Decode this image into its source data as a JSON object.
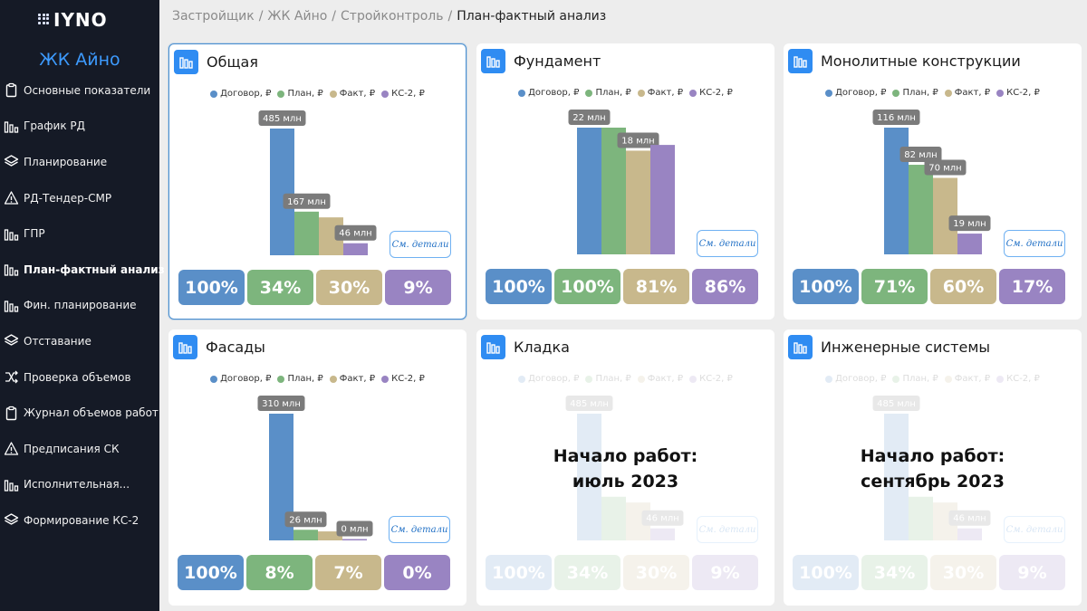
{
  "app": {
    "logo_text": "IYNO",
    "project": "ЖК Айно"
  },
  "sidebar": {
    "items": [
      {
        "label": "Основные показатели",
        "icon": "clipboard-icon",
        "active": false
      },
      {
        "label": "График РД",
        "icon": "bar-chart-icon",
        "active": false
      },
      {
        "label": "Планирование",
        "icon": "layers-icon",
        "active": false
      },
      {
        "label": "РД-Тендер-СМР",
        "icon": "warning-icon",
        "active": false
      },
      {
        "label": "ГПР",
        "icon": "bar-chart-icon",
        "active": false
      },
      {
        "label": "План-фактный анализ",
        "icon": "bar-chart-icon",
        "active": true
      },
      {
        "label": "Фин. планирование",
        "icon": "bar-chart-icon",
        "active": false
      },
      {
        "label": "Отставание",
        "icon": "layers-icon",
        "active": false
      },
      {
        "label": "Проверка объемов",
        "icon": "shuffle-icon",
        "active": false
      },
      {
        "label": "Журнал объемов работ",
        "icon": "clipboard-icon",
        "active": false
      },
      {
        "label": "Предписания СК",
        "icon": "warning-icon",
        "active": false
      },
      {
        "label": "Исполнительная...",
        "icon": "bar-chart-icon",
        "active": false
      },
      {
        "label": "Формирование КС-2",
        "icon": "layers-icon",
        "active": false
      }
    ]
  },
  "breadcrumb": {
    "items": [
      "Застройщик",
      "ЖК Айно",
      "Стройконтроль"
    ],
    "separator": "/",
    "current": "План-фактный анализ"
  },
  "legend": [
    "Договор, ₽",
    "План, ₽",
    "Факт, ₽",
    "КС-2, ₽"
  ],
  "colors": {
    "contract": "#5a8fc8",
    "plan": "#7db57d",
    "fact": "#c8b88c",
    "ks2": "#9984c2",
    "accent": "#2f8cf2",
    "sidebar": "#151a26",
    "project": "#3d9bff"
  },
  "details_label": "См. детали",
  "cards": [
    {
      "title": "Общая",
      "selected": true,
      "faded": false,
      "note": [],
      "chart_data": {
        "type": "bar",
        "categories": [
          "Договор, ₽",
          "План, ₽",
          "Факт, ₽",
          "КС-2, ₽"
        ],
        "values": [
          485,
          167,
          145,
          46
        ],
        "unit": "млн",
        "labels": [
          "485 млн",
          "167 млн",
          "",
          "46 млн"
        ]
      },
      "percents": [
        "100%",
        "34%",
        "30%",
        "9%"
      ]
    },
    {
      "title": "Фундамент",
      "selected": false,
      "faded": false,
      "note": [],
      "chart_data": {
        "type": "bar",
        "categories": [
          "Договор, ₽",
          "План, ₽",
          "Факт, ₽",
          "КС-2, ₽"
        ],
        "values": [
          22,
          22,
          18,
          19
        ],
        "unit": "млн",
        "labels": [
          "22 млн",
          "",
          "18 млн",
          ""
        ]
      },
      "percents": [
        "100%",
        "100%",
        "81%",
        "86%"
      ]
    },
    {
      "title": "Монолитные конструкции",
      "selected": false,
      "faded": false,
      "note": [],
      "chart_data": {
        "type": "bar",
        "categories": [
          "Договор, ₽",
          "План, ₽",
          "Факт, ₽",
          "КС-2, ₽"
        ],
        "values": [
          116,
          82,
          70,
          19
        ],
        "unit": "млн",
        "labels": [
          "116 млн",
          "82 млн",
          "70 млн",
          "19 млн"
        ]
      },
      "percents": [
        "100%",
        "71%",
        "60%",
        "17%"
      ]
    },
    {
      "title": "Фасады",
      "selected": false,
      "faded": false,
      "note": [],
      "chart_data": {
        "type": "bar",
        "categories": [
          "Договор, ₽",
          "План, ₽",
          "Факт, ₽",
          "КС-2, ₽"
        ],
        "values": [
          310,
          26,
          22,
          0
        ],
        "unit": "млн",
        "labels": [
          "310 млн",
          "26 млн",
          "",
          "0 млн"
        ]
      },
      "percents": [
        "100%",
        "8%",
        "7%",
        "0%"
      ]
    },
    {
      "title": "Кладка",
      "selected": false,
      "faded": true,
      "note": [
        "Начало работ:",
        "июль 2023"
      ],
      "chart_data": {
        "type": "bar",
        "categories": [
          "Договор, ₽",
          "План, ₽",
          "Факт, ₽",
          "КС-2, ₽"
        ],
        "values": [
          485,
          167,
          145,
          46
        ],
        "unit": "млн",
        "labels": [
          "485 млн",
          "",
          "",
          "46 млн"
        ]
      },
      "percents": [
        "100%",
        "34%",
        "30%",
        "9%"
      ]
    },
    {
      "title": "Инженерные системы",
      "selected": false,
      "faded": true,
      "note": [
        "Начало работ:",
        "сентябрь 2023"
      ],
      "chart_data": {
        "type": "bar",
        "categories": [
          "Договор, ₽",
          "План, ₽",
          "Факт, ₽",
          "КС-2, ₽"
        ],
        "values": [
          485,
          167,
          145,
          46
        ],
        "unit": "млн",
        "labels": [
          "485 млн",
          "",
          "",
          "46 млн"
        ]
      },
      "percents": [
        "100%",
        "34%",
        "30%",
        "9%"
      ]
    }
  ]
}
